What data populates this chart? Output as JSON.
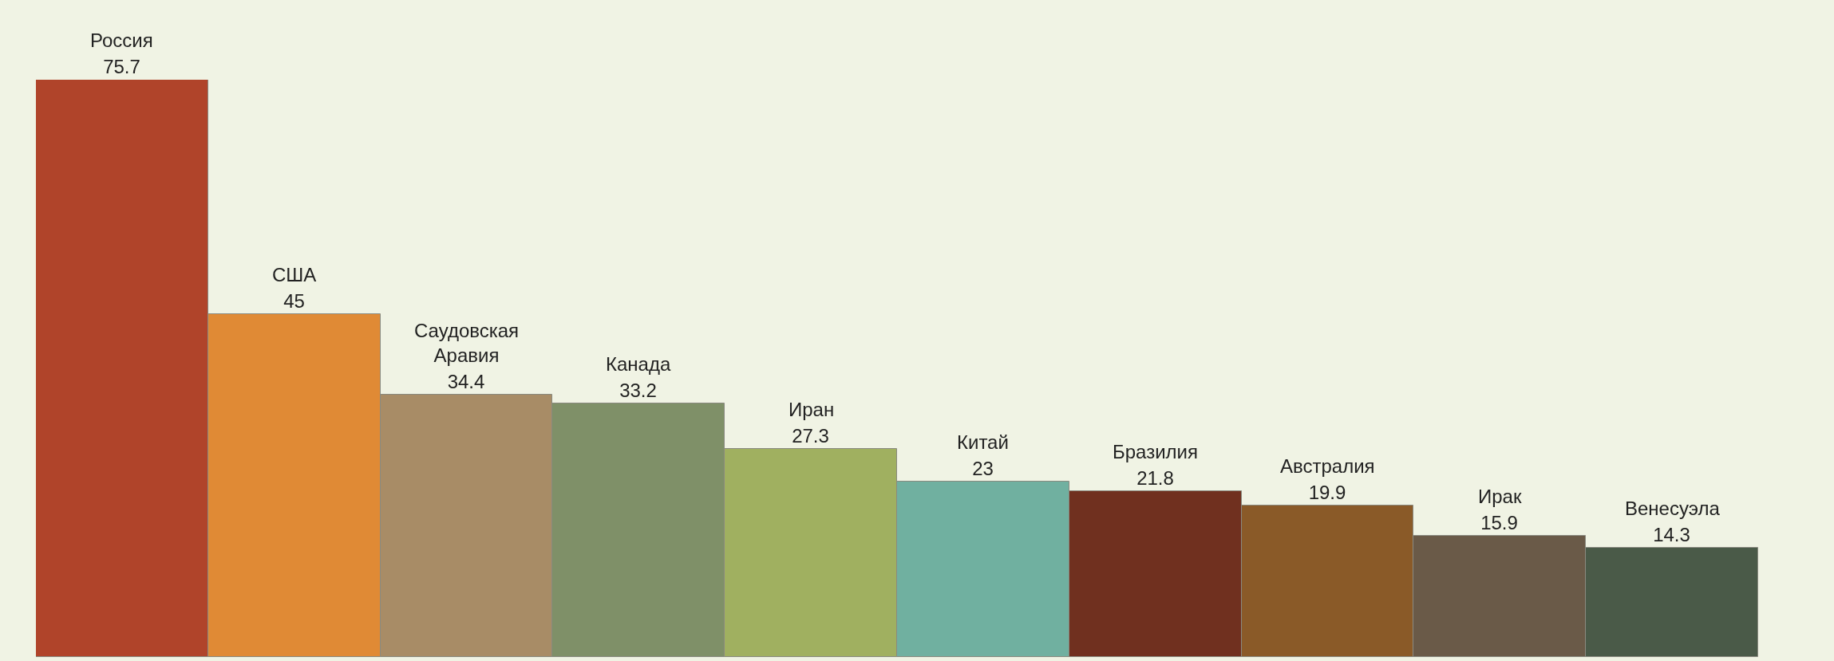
{
  "chart_data": {
    "type": "bar",
    "categories": [
      "Россия",
      "США",
      "Саудовская Аравия",
      "Канада",
      "Иран",
      "Китай",
      "Бразилия",
      "Австралия",
      "Ирак",
      "Венесуэла"
    ],
    "values": [
      75.7,
      45,
      34.4,
      33.2,
      27.3,
      23,
      21.8,
      19.9,
      15.9,
      14.3
    ],
    "colors": [
      "#b0442a",
      "#e08a35",
      "#a88c66",
      "#7f9068",
      "#a0b060",
      "#70b0a0",
      "#70301f",
      "#8a5a28",
      "#6a5a48",
      "#4a5a48"
    ],
    "data_labels": true
  }
}
